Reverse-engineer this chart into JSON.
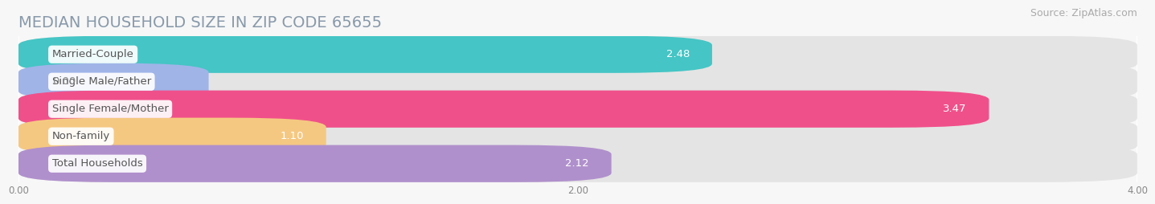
{
  "title": "MEDIAN HOUSEHOLD SIZE IN ZIP CODE 65655",
  "source": "Source: ZipAtlas.com",
  "categories": [
    "Married-Couple",
    "Single Male/Father",
    "Single Female/Mother",
    "Non-family",
    "Total Households"
  ],
  "values": [
    2.48,
    0.0,
    3.47,
    1.1,
    2.12
  ],
  "bar_colors": [
    "#45c5c5",
    "#a0b4e8",
    "#f0508a",
    "#f5c882",
    "#b090cc"
  ],
  "xlim": [
    0,
    4.0
  ],
  "xticks": [
    0.0,
    2.0,
    4.0
  ],
  "xticklabels": [
    "0.00",
    "2.00",
    "4.00"
  ],
  "background_color": "#f7f7f7",
  "bar_bg_color": "#e4e4e4",
  "title_color": "#8899aa",
  "source_color": "#aaaaaa",
  "label_color": "#555555",
  "value_color_inside": "#ffffff",
  "value_color_outside": "#888888",
  "title_fontsize": 14,
  "source_fontsize": 9,
  "label_fontsize": 9.5,
  "value_fontsize": 9.5,
  "tick_fontsize": 8.5
}
